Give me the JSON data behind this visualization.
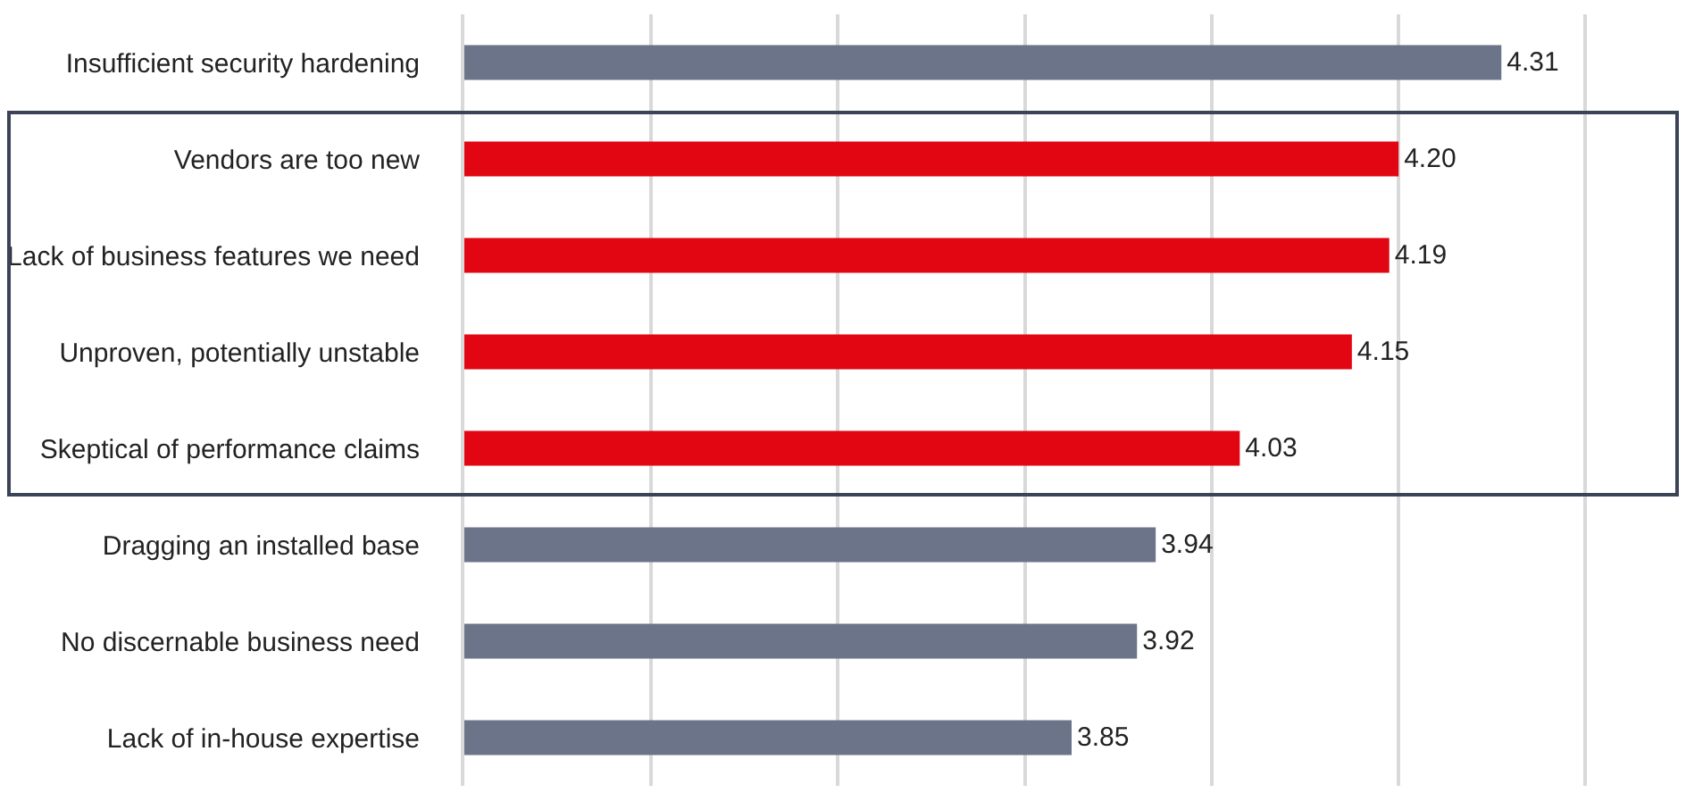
{
  "chart_data": {
    "type": "bar",
    "orientation": "horizontal",
    "categories": [
      "Insufficient security hardening",
      "Vendors are too new",
      "Lack of business features we need",
      "Unproven, potentially unstable",
      "Skeptical of performance claims",
      "Dragging an installed base",
      "No discernable business need",
      "Lack of in-house expertise"
    ],
    "values": [
      4.31,
      4.2,
      4.19,
      4.15,
      4.03,
      3.94,
      3.92,
      3.85
    ],
    "colors": [
      "#6b7489",
      "#e20613",
      "#e20613",
      "#e20613",
      "#e20613",
      "#6b7489",
      "#6b7489",
      "#6b7489"
    ],
    "value_labels": [
      "4.31",
      "4.20",
      "4.19",
      "4.15",
      "4.03",
      "3.94",
      "3.92",
      "3.85"
    ],
    "xlim": [
      3.2,
      4.5
    ],
    "grid": "x",
    "tick_labels": "y"
  }
}
